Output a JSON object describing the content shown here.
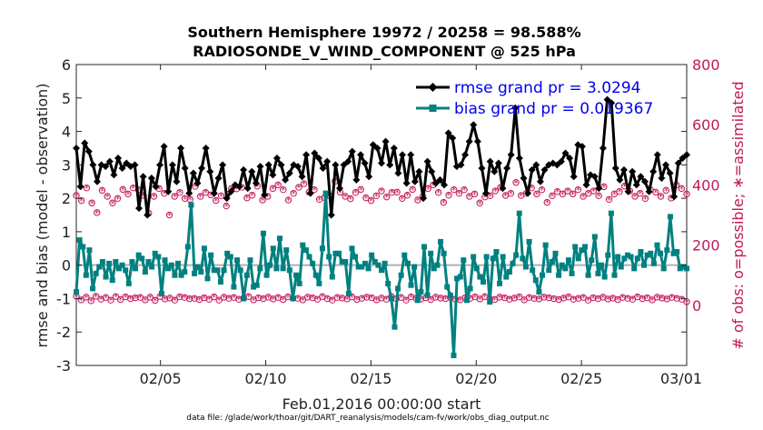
{
  "chart_data": {
    "type": "line",
    "title_line1": "Southern Hemisphere 19972 / 20258 = 98.588%",
    "title_line2": "RADIOSONDE_V_WIND_COMPONENT @ 525 hPa",
    "ylabel": "rmse and bias (model - observation)",
    "ylabel_right": "# of obs: o=possible; ∗=assimilated",
    "xlabel": "Feb.01,2016 00:00:00 start",
    "footer": "data file: /glade/work/thoar/git/DART_reanalysis/models/cam-fv/work/obs_diag_output.nc",
    "xlim": [
      1,
      30
    ],
    "ylim": [
      -3,
      6
    ],
    "ylim_right": [
      -200,
      800
    ],
    "yticks": [
      "-3",
      "-2",
      "-1",
      "0",
      "1",
      "2",
      "3",
      "4",
      "5",
      "6"
    ],
    "yticks_right": [
      "0",
      "200",
      "400",
      "600",
      "800"
    ],
    "xticks": [
      {
        "x": 5,
        "label": "02/05"
      },
      {
        "x": 10,
        "label": "02/10"
      },
      {
        "x": 15,
        "label": "02/15"
      },
      {
        "x": 20,
        "label": "02/20"
      },
      {
        "x": 25,
        "label": "02/25"
      },
      {
        "x": 30,
        "label": "03/01"
      }
    ],
    "series": [
      {
        "name": "rmse",
        "legend": "rmse grand pr = 3.0294",
        "color": "#000000",
        "marker": "diamond",
        "values": [
          3.5,
          2.35,
          3.65,
          3.4,
          3.0,
          2.5,
          3.0,
          2.95,
          3.1,
          2.7,
          3.2,
          2.9,
          3.05,
          2.95,
          3.0,
          1.7,
          2.65,
          1.5,
          2.6,
          2.35,
          3.0,
          3.55,
          2.2,
          3.0,
          2.5,
          3.5,
          2.9,
          2.15,
          2.75,
          2.45,
          2.9,
          3.5,
          2.8,
          2.15,
          2.6,
          3.0,
          2.0,
          2.2,
          2.4,
          2.35,
          2.85,
          2.3,
          2.8,
          2.45,
          2.95,
          2.1,
          3.0,
          2.7,
          3.2,
          3.0,
          2.55,
          2.75,
          3.0,
          2.95,
          2.65,
          3.3,
          2.15,
          3.35,
          3.2,
          2.9,
          3.1,
          1.5,
          3.0,
          2.3,
          3.0,
          3.1,
          3.4,
          2.55,
          3.3,
          3.05,
          2.65,
          3.6,
          3.5,
          3.05,
          3.7,
          3.0,
          3.5,
          2.75,
          3.3,
          2.45,
          3.3,
          2.5,
          2.8,
          2.0,
          3.1,
          2.8,
          2.45,
          2.55,
          2.4,
          3.95,
          3.8,
          2.95,
          3.0,
          3.3,
          3.7,
          4.2,
          3.7,
          2.9,
          2.15,
          3.1,
          2.8,
          3.05,
          2.3,
          2.9,
          3.3,
          4.7,
          3.2,
          2.6,
          2.15,
          2.85,
          3.0,
          2.5,
          2.85,
          3.0,
          3.05,
          3.0,
          3.1,
          3.35,
          3.2,
          2.65,
          3.6,
          3.55,
          2.4,
          2.7,
          2.65,
          2.3,
          3.5,
          4.95,
          4.85,
          2.9,
          2.55,
          2.85,
          2.2,
          2.8,
          2.4,
          2.65,
          2.5,
          2.2,
          2.8,
          3.3,
          2.6,
          3.0,
          2.75,
          2.05,
          3.05,
          3.2,
          3.3
        ]
      },
      {
        "name": "bias",
        "legend": "bias grand pr = 0.019367",
        "color": "#008080",
        "marker": "square",
        "values": [
          -0.8,
          0.75,
          0.55,
          -0.3,
          0.45,
          -0.7,
          -0.25,
          -0.05,
          0.1,
          -0.35,
          0.05,
          -0.45,
          0.1,
          -0.1,
          0.0,
          -0.15,
          -0.55,
          0.1,
          -0.1,
          0.3,
          0.2,
          -0.2,
          0.1,
          -0.05,
          0.35,
          0.25,
          -0.85,
          0.15,
          -0.1,
          0.0,
          -0.3,
          0.05,
          -0.3,
          -0.2,
          0.55,
          1.8,
          -0.25,
          -0.05,
          -0.2,
          0.5,
          -0.4,
          0.3,
          -0.15,
          -0.15,
          -0.5,
          -0.15,
          0.35,
          0.25,
          -0.65,
          0.15,
          -0.15,
          -1.0,
          -0.3,
          0.15,
          -0.65,
          -0.6,
          -0.1,
          0.95,
          -0.3,
          0.0,
          0.5,
          -0.1,
          0.8,
          -0.1,
          0.45,
          -0.15,
          -1.0,
          -0.3,
          -0.55,
          0.6,
          0.45,
          0.25,
          0.05,
          -0.3,
          -0.55,
          0.5,
          2.15,
          0.25,
          -0.35,
          0.35,
          0.35,
          0.1,
          0.1,
          -0.85,
          0.5,
          0.25,
          -0.05,
          -0.05,
          0.05,
          -0.1,
          0.3,
          0.1,
          0.0,
          -0.15,
          0.05,
          -0.55,
          -1.0,
          -1.85,
          -0.7,
          -0.3,
          0.3,
          0.05,
          -0.6,
          -0.05,
          -1.05,
          -0.8,
          0.55,
          -0.9,
          0.35,
          -0.1,
          0.0,
          0.7,
          0.35,
          -0.65,
          -0.9,
          -2.7,
          -0.4,
          -0.35,
          0.15,
          -1.05,
          -0.7,
          0.25,
          -0.1,
          -0.35,
          -0.5,
          0.25,
          -1.1,
          0.2,
          0.4,
          -0.55,
          0.25,
          -0.35,
          -0.2,
          0.05,
          0.3,
          1.55,
          0.2,
          -0.05,
          0.7,
          -0.15,
          -0.45,
          -0.8,
          -0.3,
          0.6,
          -0.15,
          0.1,
          0.35,
          -0.3,
          0.0,
          -0.1,
          0.15,
          -0.25,
          0.55,
          0.2,
          0.45,
          0.55,
          -0.3,
          0.15,
          0.85,
          -0.25,
          0.0,
          -0.35,
          0.3,
          1.55,
          -0.3,
          0.25,
          -0.05,
          0.2,
          0.3,
          0.25,
          -0.1,
          0.2,
          0.4,
          0.0,
          0.3,
          0.35,
          0.05,
          0.6,
          0.35,
          -0.1,
          0.45,
          1.45,
          0.35,
          0.4,
          -0.1,
          -0.05,
          -0.1
        ]
      }
    ],
    "obs_counts": {
      "possible_high": [
        365,
        348,
        390,
        340,
        308,
        382,
        362,
        340,
        355,
        385,
        370,
        390,
        384,
        365,
        306,
        362,
        388,
        372,
        300,
        362,
        375,
        355,
        352,
        395,
        362,
        375,
        367,
        348,
        364,
        330,
        388,
        387,
        392,
        357,
        366,
        396,
        350,
        362,
        388,
        400,
        384,
        350,
        372,
        392,
        404,
        376,
        384,
        352,
        358,
        364,
        412,
        376,
        362,
        354,
        375,
        385,
        357,
        348,
        364,
        380,
        360,
        375,
        376,
        355,
        366,
        385,
        350,
        362,
        388,
        400,
        375,
        342,
        366,
        384,
        372,
        384,
        362,
        370,
        340,
        360,
        364,
        380,
        392,
        365,
        372,
        408,
        365,
        372,
        390,
        370,
        384,
        342,
        364,
        378,
        370,
        380,
        370,
        384,
        362,
        372,
        380,
        364,
        394,
        352,
        370,
        378,
        396,
        380,
        362,
        372,
        355,
        384,
        376,
        362,
        382,
        356,
        400,
        388,
        370
      ],
      "possible_low": [
        30,
        18,
        27,
        15,
        30,
        20,
        26,
        17,
        29,
        19,
        28,
        22,
        25,
        26,
        18,
        27,
        16,
        29,
        21,
        24,
        17,
        28,
        26,
        22,
        23,
        19,
        25,
        20,
        28,
        17,
        27,
        23,
        26,
        20,
        24,
        29,
        18,
        25,
        22,
        27,
        21,
        26,
        19,
        28,
        24,
        23,
        18,
        27,
        25,
        20,
        29,
        22,
        17,
        26,
        24,
        21,
        28,
        19,
        23,
        27,
        25,
        18,
        24,
        20,
        29,
        22,
        26,
        17,
        28,
        23,
        21,
        25,
        19,
        27,
        24,
        22,
        26,
        20,
        18,
        25,
        23,
        28,
        21,
        29,
        22,
        19,
        27,
        25,
        20,
        24,
        28,
        18,
        26,
        23,
        21,
        27,
        25,
        22,
        19,
        24,
        28,
        20,
        23,
        26,
        17,
        25,
        22,
        27,
        21,
        24,
        19,
        26,
        23,
        20,
        28,
        22,
        25,
        18,
        27,
        24,
        21,
        26,
        23,
        20,
        12
      ]
    }
  }
}
